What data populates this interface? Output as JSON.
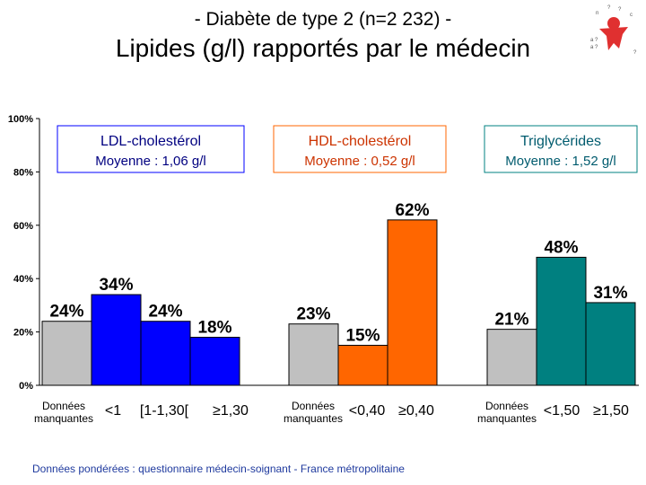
{
  "header": {
    "title": "- Diabète de type 2 (n=2 232) -",
    "subtitle": "Lipides (g/l) rapportés par le médecin"
  },
  "logo": {
    "icon": "figure-logo"
  },
  "footer": {
    "note": "Données pondérées : questionnaire médecin-soignant - France métropolitaine"
  },
  "colors": {
    "missing": "#c0c0c0",
    "ldl": "#0000ff",
    "hdl": "#ff6600",
    "tg": "#008080",
    "ldl_title": "#000080",
    "hdl_title": "#cc3300",
    "tg_title": "#005b6e"
  },
  "chart_data": {
    "type": "bar",
    "ylim": [
      0,
      100
    ],
    "y_ticks": [
      "0%",
      "20%",
      "40%",
      "60%",
      "80%",
      "100%"
    ],
    "grid": false,
    "groups": [
      {
        "title": "LDL-cholestérol",
        "subtitle": "Moyenne : 1,06 g/l",
        "categories": [
          "Données manquantes",
          "<1",
          "[1-1,30[",
          "≥1,30"
        ],
        "values": [
          24,
          34,
          24,
          18
        ],
        "labels": [
          "24%",
          "34%",
          "24%",
          "18%"
        ]
      },
      {
        "title": "HDL-cholestérol",
        "subtitle": "Moyenne : 0,52 g/l",
        "categories": [
          "Données manquantes",
          "<0,40",
          "≥0,40"
        ],
        "values": [
          23,
          15,
          62
        ],
        "labels": [
          "23%",
          "15%",
          "62%"
        ]
      },
      {
        "title": "Triglycérides",
        "subtitle": "Moyenne : 1,52 g/l",
        "categories": [
          "Données manquantes",
          "<1,50",
          "≥1,50"
        ],
        "values": [
          21,
          48,
          31
        ],
        "labels": [
          "21%",
          "48%",
          "31%"
        ]
      }
    ]
  }
}
